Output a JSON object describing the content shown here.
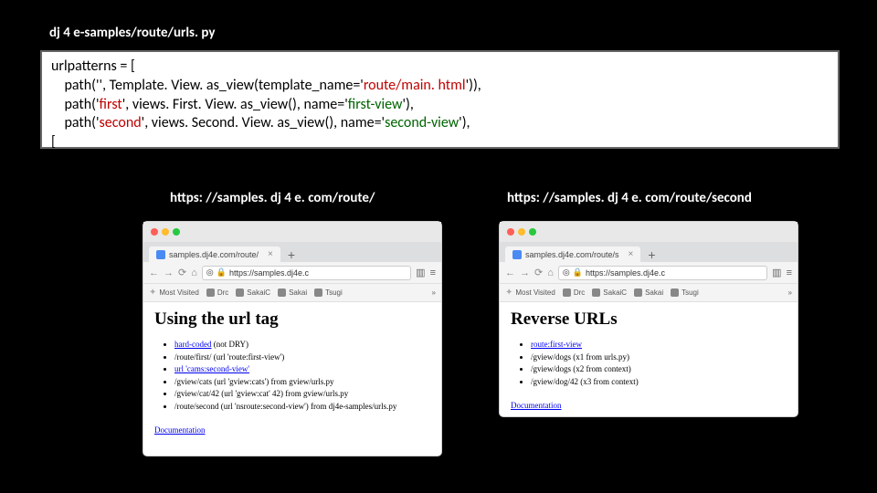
{
  "file_path": "dj 4 e-samples/route/urls. py",
  "code": {
    "l1_a": "urlpatterns = [",
    "l2_a": "    path('', Template. View. as_view(template_name='",
    "l2_b": "route/main. html",
    "l2_c": "')),",
    "l3_a": "    path('",
    "l3_b": "first",
    "l3_c": "', views. First. View. as_view(), name='",
    "l3_d": "first-view",
    "l3_e": "'),",
    "l4_a": "    path('",
    "l4_b": "second",
    "l4_c": "', views. Second. View. as_view(), name='",
    "l4_d": "second-view",
    "l4_e": "'),",
    "l5_a": "["
  },
  "urls": {
    "left": "https: //samples. dj 4 e. com/route/",
    "right": "https: //samples. dj 4 e. com/route/second"
  },
  "browser_left": {
    "tab_title": "samples.dj4e.com/route/",
    "address": "https://samples.dj4e.c",
    "bookmarks": [
      "Most Visited",
      "Drc",
      "SakaiC",
      "Sakai",
      "Tsugi"
    ],
    "heading": "Using the url tag",
    "items": [
      {
        "link": "hard-coded",
        "rest": " (not DRY)"
      },
      {
        "link": "",
        "rest": "/route/first/ (url 'route:first-view')"
      },
      {
        "link": "url 'cams:second-view'",
        "rest": ""
      },
      {
        "link": "",
        "rest": "/gview/cats (url 'gview:cats') from gview/urls.py"
      },
      {
        "link": "",
        "rest": "/gview/cat/42 (url 'gview:cat' 42) from gview/urls.py"
      },
      {
        "link": "",
        "rest": "/route/second (url 'nsroute:second-view') from dj4e-samples/urls.py"
      }
    ],
    "doc": "Documentation"
  },
  "browser_right": {
    "tab_title": "samples.dj4e.com/route/s",
    "address": "https://samples.dj4e.c",
    "bookmarks": [
      "Most Visited",
      "Drc",
      "SakaiC",
      "Sakai",
      "Tsugi"
    ],
    "heading": "Reverse URLs",
    "items": [
      {
        "link": "route:first-view",
        "rest": ""
      },
      {
        "link": "",
        "rest": "/gview/dogs (x1 from urls.py)"
      },
      {
        "link": "",
        "rest": "/gview/dogs (x2 from context)"
      },
      {
        "link": "",
        "rest": "/gview/dog/42 (x3 from context)"
      }
    ],
    "doc": "Documentation"
  },
  "colors": {
    "dot1": "#ff5f57",
    "dot2": "#febc2e",
    "dot3": "#28c840"
  }
}
